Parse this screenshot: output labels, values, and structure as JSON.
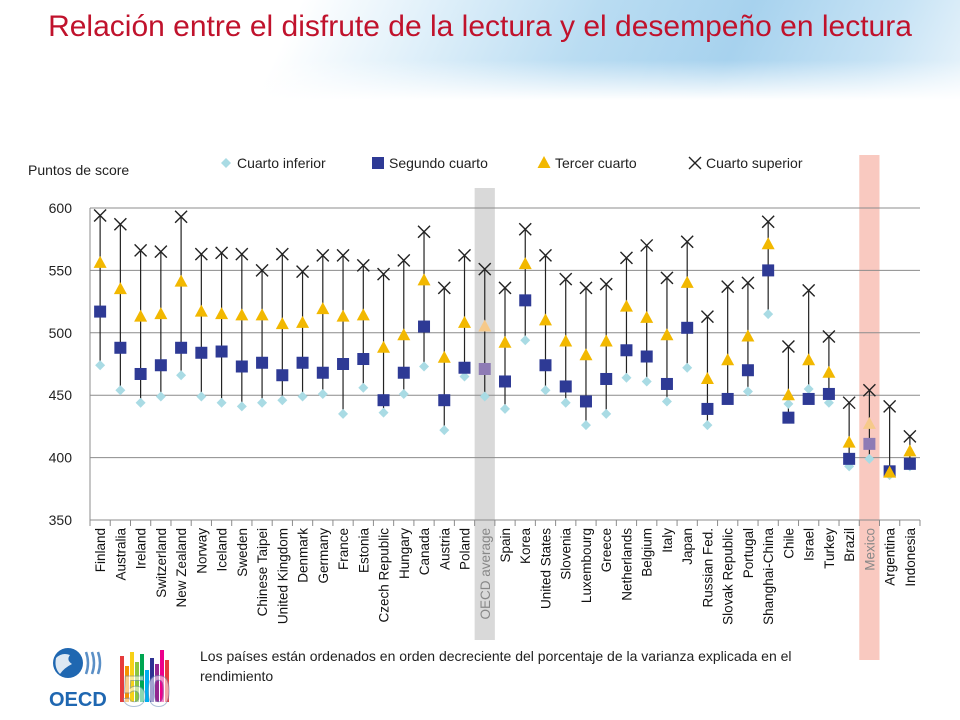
{
  "page": {
    "title": "Relación entre el disfrute de la lectura y el desempeño en lectura",
    "footnote": "Los países están ordenados en orden decreciente del porcentaje de la varianza explicada en el rendimiento",
    "logo": {
      "text": "OECD",
      "number": "50"
    }
  },
  "colors": {
    "title": "#c0122c",
    "cuarto_inferior": "#a9dbe4",
    "segundo_cuarto": "#2e3a95",
    "tercer_cuarto": "#f2b800",
    "cuarto_superior": "#222222",
    "oecd_highlight": "#d9d9d9",
    "mexico_highlight": "#f9c9c0",
    "highlight_square": "#8e7bb5",
    "highlight_triangle": "#f6c98a"
  },
  "chart_data": {
    "type": "scatter",
    "ylabel": "Puntos de score",
    "ylim": [
      350,
      600
    ],
    "yticks": [
      350,
      400,
      450,
      500,
      550,
      600
    ],
    "grid": true,
    "legend_position": "top",
    "highlighted": [
      "OECD average",
      "Mexico"
    ],
    "categories": [
      "Finland",
      "Australia",
      "Ireland",
      "Switzerland",
      "New Zealand",
      "Norway",
      "Iceland",
      "Sweden",
      "Chinese Taipei",
      "United Kingdom",
      "Denmark",
      "Germany",
      "France",
      "Estonia",
      "Czech Republic",
      "Hungary",
      "Canada",
      "Austria",
      "Poland",
      "OECD average",
      "Spain",
      "Korea",
      "United States",
      "Slovenia",
      "Luxembourg",
      "Greece",
      "Netherlands",
      "Belgium",
      "Italy",
      "Japan",
      "Russian Fed.",
      "Slovak Republic",
      "Portugal",
      "Shanghai-China",
      "Chile",
      "Israel",
      "Turkey",
      "Brazil",
      "Mexico",
      "Argentina",
      "Indonesia"
    ],
    "series": [
      {
        "name": "Cuarto inferior",
        "marker": "diamond",
        "values": [
          474,
          454,
          444,
          449,
          466,
          449,
          444,
          441,
          444,
          446,
          449,
          451,
          435,
          456,
          436,
          451,
          473,
          422,
          465,
          449,
          439,
          494,
          454,
          444,
          426,
          435,
          464,
          461,
          445,
          472,
          426,
          447,
          453,
          515,
          443,
          455,
          444,
          393,
          399,
          386,
          393
        ]
      },
      {
        "name": "Segundo cuarto",
        "marker": "square",
        "values": [
          517,
          488,
          467,
          474,
          488,
          484,
          485,
          473,
          476,
          466,
          476,
          468,
          475,
          479,
          446,
          468,
          505,
          446,
          472,
          471,
          461,
          526,
          474,
          457,
          445,
          463,
          486,
          481,
          459,
          504,
          439,
          447,
          470,
          550,
          432,
          447,
          451,
          399,
          411,
          389,
          395
        ]
      },
      {
        "name": "Tercer cuarto",
        "marker": "triangle",
        "values": [
          556,
          535,
          513,
          515,
          541,
          517,
          515,
          514,
          514,
          507,
          508,
          519,
          513,
          514,
          488,
          498,
          542,
          480,
          508,
          505,
          492,
          555,
          510,
          493,
          482,
          493,
          521,
          512,
          498,
          540,
          463,
          478,
          497,
          571,
          450,
          478,
          468,
          412,
          427,
          388,
          405
        ]
      },
      {
        "name": "Cuarto superior",
        "marker": "x",
        "values": [
          594,
          587,
          566,
          565,
          593,
          563,
          564,
          563,
          550,
          563,
          549,
          562,
          562,
          554,
          547,
          558,
          581,
          536,
          562,
          551,
          536,
          583,
          562,
          543,
          536,
          539,
          560,
          570,
          544,
          573,
          513,
          537,
          540,
          589,
          489,
          534,
          497,
          444,
          454,
          441,
          417
        ]
      }
    ]
  }
}
